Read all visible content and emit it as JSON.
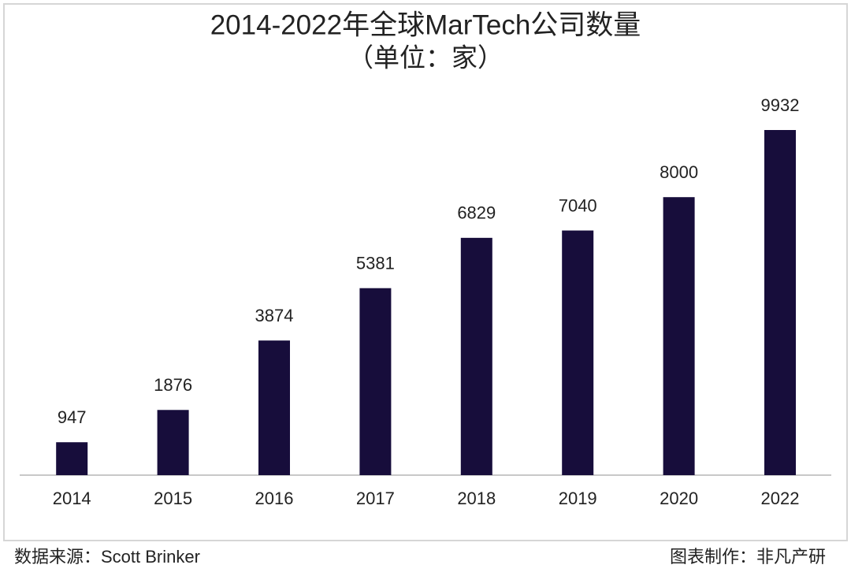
{
  "chart_data": {
    "type": "bar",
    "title": "2014-2022年全球MarTech公司数量",
    "subtitle": "（单位：家）",
    "categories": [
      "2014",
      "2015",
      "2016",
      "2017",
      "2018",
      "2019",
      "2020",
      "2022"
    ],
    "values": [
      947,
      1876,
      3874,
      5381,
      6829,
      7040,
      8000,
      9932
    ],
    "color": "#170d3b",
    "source": "数据来源：Scott Brinker",
    "credit": "图表制作：非凡产研"
  }
}
